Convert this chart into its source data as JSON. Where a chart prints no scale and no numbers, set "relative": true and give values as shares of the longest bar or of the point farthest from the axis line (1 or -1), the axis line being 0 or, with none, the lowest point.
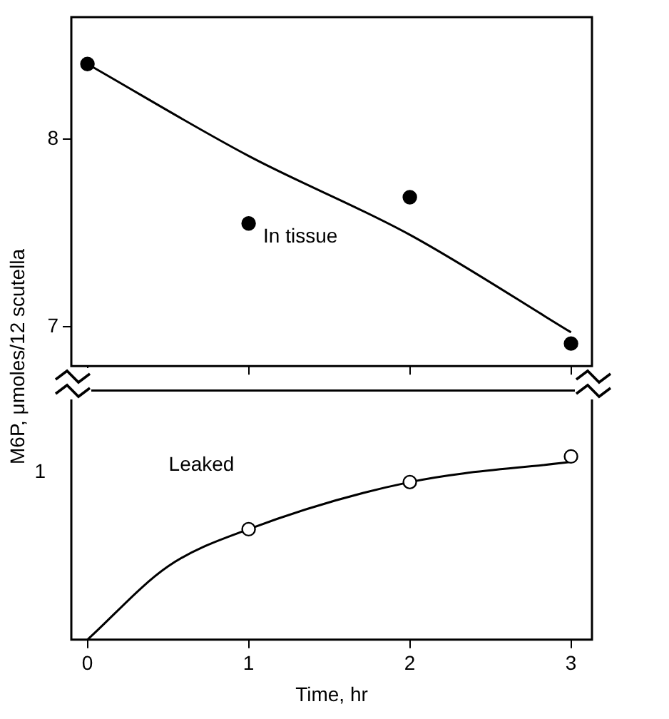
{
  "chart_data": [
    {
      "type": "scatter",
      "ylabel": "M6P, μmoles/12 scutella",
      "xlim": [
        -0.1,
        3.13
      ],
      "xticks": [
        0,
        1,
        2,
        3
      ],
      "ylim": [
        6.79,
        8.65
      ],
      "yticks": [
        7,
        8
      ],
      "tick_labels": "y",
      "grid": false,
      "legend": false,
      "annotations": [
        "In tissue"
      ],
      "series": [
        {
          "type": "scatter",
          "color": "#000000",
          "marker": "circle",
          "x": [
            0,
            1,
            2,
            3
          ],
          "values": [
            8.4,
            7.55,
            7.69,
            6.91
          ]
        },
        {
          "type": "line",
          "color": "#000000",
          "marker": "none",
          "x": [
            0,
            1,
            2,
            3
          ],
          "values": [
            8.4,
            7.91,
            7.49,
            6.97
          ]
        }
      ]
    },
    {
      "type": "scatter",
      "xlabel": "Time, hr",
      "xlim": [
        -0.1,
        3.13
      ],
      "xticks": [
        0,
        1,
        2,
        3
      ],
      "relative": true,
      "grid": false,
      "legend": false,
      "annotations": [
        "Leaked",
        "1"
      ],
      "series": [
        {
          "type": "scatter",
          "color": "#000000",
          "marker": "circle",
          "x": [
            1,
            2,
            3
          ],
          "values": [
            0.603,
            0.86,
            1
          ]
        },
        {
          "type": "line",
          "color": "#000000",
          "marker": "none",
          "x": [
            0,
            0.5,
            1,
            2,
            3
          ],
          "values": [
            0,
            0.4,
            0.603,
            0.86,
            0.97
          ]
        }
      ]
    }
  ]
}
